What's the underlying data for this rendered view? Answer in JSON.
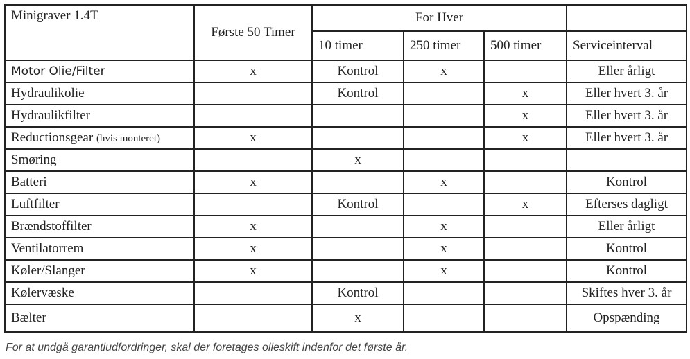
{
  "header": {
    "machine": "Minigraver 1.4T",
    "first_50": "Første 50 Timer",
    "for_hver": "For Hver",
    "h10": "10 timer",
    "h250": "250 timer",
    "h500": "500 timer",
    "interval": "Serviceinterval"
  },
  "rows": [
    {
      "item": "Motor Olie/Filter",
      "note": "",
      "first50": "x",
      "h10": "Kontrol",
      "h250": "x",
      "h500": "",
      "interval": "Eller årligt"
    },
    {
      "item": "Hydraulikolie",
      "note": "",
      "first50": "",
      "h10": "Kontrol",
      "h250": "",
      "h500": "x",
      "interval": "Eller hvert 3. år"
    },
    {
      "item": "Hydraulikfilter",
      "note": "",
      "first50": "",
      "h10": "",
      "h250": "",
      "h500": "x",
      "interval": "Eller hvert 3. år"
    },
    {
      "item": "Reductionsgear",
      "note": "(hvis monteret)",
      "first50": "x",
      "h10": "",
      "h250": "",
      "h500": "x",
      "interval": "Eller hvert 3. år"
    },
    {
      "item": "Smøring",
      "note": "",
      "first50": "",
      "h10": "x",
      "h250": "",
      "h500": "",
      "interval": ""
    },
    {
      "item": "Batteri",
      "note": "",
      "first50": "x",
      "h10": "",
      "h250": "x",
      "h500": "",
      "interval": "Kontrol"
    },
    {
      "item": "Luftfilter",
      "note": "",
      "first50": "",
      "h10": "Kontrol",
      "h250": "",
      "h500": "x",
      "interval": "Efterses dagligt"
    },
    {
      "item": "Brændstoffilter",
      "note": "",
      "first50": "x",
      "h10": "",
      "h250": "x",
      "h500": "",
      "interval": "Eller årligt"
    },
    {
      "item": "Ventilatorrem",
      "note": "",
      "first50": "x",
      "h10": "",
      "h250": "x",
      "h500": "",
      "interval": "Kontrol"
    },
    {
      "item": "Køler/Slanger",
      "note": "",
      "first50": "x",
      "h10": "",
      "h250": "x",
      "h500": "",
      "interval": "Kontrol"
    },
    {
      "item": "Kølervæske",
      "note": "",
      "first50": "",
      "h10": "Kontrol",
      "h250": "",
      "h500": "",
      "interval": "Skiftes hver 3. år"
    },
    {
      "item": "Bælter",
      "note": "",
      "first50": "",
      "h10": "x",
      "h250": "",
      "h500": "",
      "interval": "Opspænding"
    }
  ],
  "footnote": "For at undgå garantiudfordringer, skal der foretages olieskift indenfor det første år."
}
